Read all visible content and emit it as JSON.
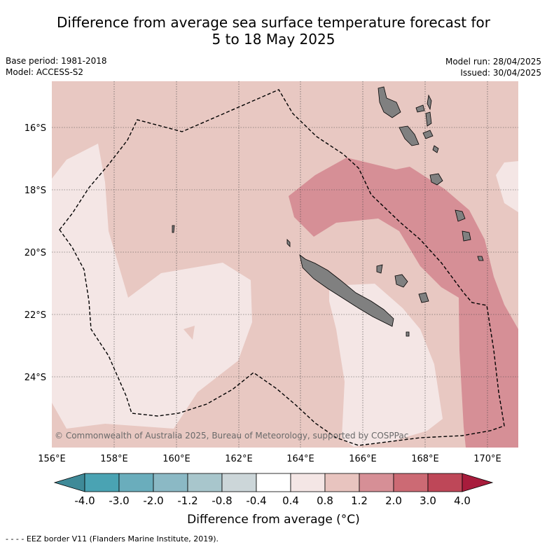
{
  "title_line1": "Difference from average sea surface temperature forecast for",
  "title_line2": "5 to 18 May 2025",
  "base_period": "Base period: 1981-2018",
  "model": "Model: ACCESS-S2",
  "model_run": "Model run: 28/04/2025",
  "issued": "Issued: 30/04/2025",
  "lat_labels": [
    "16°S",
    "18°S",
    "20°S",
    "22°S",
    "24°S"
  ],
  "lon_labels": [
    "156°E",
    "158°E",
    "160°E",
    "162°E",
    "164°E",
    "166°E",
    "168°E",
    "170°E"
  ],
  "copyright": "© Commonwealth of Australia 2025, Bureau of Meteorology, supported by COSPPac",
  "colorbar": {
    "ticks": [
      "-4.0",
      "-3.0",
      "-2.0",
      "-1.2",
      "-0.8",
      "-0.4",
      "0.4",
      "0.8",
      "1.2",
      "2.0",
      "3.0",
      "4.0"
    ],
    "colors": [
      "#4aa3b3",
      "#6aadbc",
      "#8bb9c5",
      "#a8c6cc",
      "#ccd6d9",
      "#ffffff",
      "#f4e6e5",
      "#e8c4bf",
      "#d68f96",
      "#cc6a74",
      "#be4758"
    ],
    "low_color": "#3f8a98",
    "high_color": "#a81c3c",
    "label": "Difference from average (°C)"
  },
  "legend_footer": "- -  - - EEZ border V11 (Flanders Marine Institute, 2019).",
  "map_colors": {
    "band_04_08": "#f4e6e5",
    "band_08_12": "#e8c8c2",
    "band_12_20": "#d68f96",
    "land": "#808080"
  }
}
